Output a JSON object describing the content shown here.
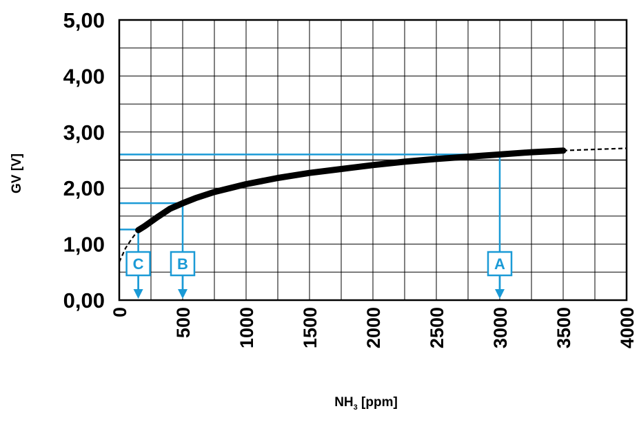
{
  "chart_data": {
    "type": "line",
    "title": "",
    "xlabel": "NH",
    "xlabel_sub": "3",
    "xlabel_unit": " [ppm]",
    "ylabel": "GV [V]",
    "xlim": [
      0,
      4000
    ],
    "ylim": [
      0,
      5
    ],
    "x_ticks": [
      0,
      500,
      1000,
      1500,
      2000,
      2500,
      3000,
      3500,
      4000
    ],
    "x_tick_labels": [
      "0",
      "500",
      "1000",
      "1500",
      "2000",
      "2500",
      "3000",
      "3500",
      "4000"
    ],
    "y_ticks": [
      0,
      1,
      2,
      3,
      4,
      5
    ],
    "y_tick_labels": [
      "0,00",
      "1,00",
      "2,00",
      "3,00",
      "4,00",
      "5,00"
    ],
    "grid": true,
    "reference_line_y": 2.5,
    "series": [
      {
        "style": "solid",
        "x": [
          150,
          200,
          300,
          400,
          500,
          600,
          750,
          1000,
          1250,
          1500,
          1750,
          2000,
          2250,
          2500,
          2750,
          3000,
          3250,
          3500
        ],
        "y": [
          1.25,
          1.32,
          1.48,
          1.63,
          1.73,
          1.82,
          1.93,
          2.07,
          2.18,
          2.27,
          2.34,
          2.41,
          2.47,
          2.52,
          2.56,
          2.6,
          2.64,
          2.67
        ]
      },
      {
        "style": "dashed",
        "x": [
          0,
          50,
          100,
          150
        ],
        "y": [
          0.68,
          0.93,
          1.1,
          1.25
        ]
      },
      {
        "style": "dashed",
        "x": [
          3500,
          3750,
          4000
        ],
        "y": [
          2.67,
          2.69,
          2.71
        ]
      }
    ],
    "annotations": [
      {
        "label": "A",
        "x": 3000,
        "y": 2.6,
        "color": "#1a9ad6"
      },
      {
        "label": "B",
        "x": 500,
        "y": 1.73,
        "color": "#1a9ad6"
      },
      {
        "label": "C",
        "x": 150,
        "y": 1.26,
        "color": "#1a9ad6"
      }
    ]
  }
}
